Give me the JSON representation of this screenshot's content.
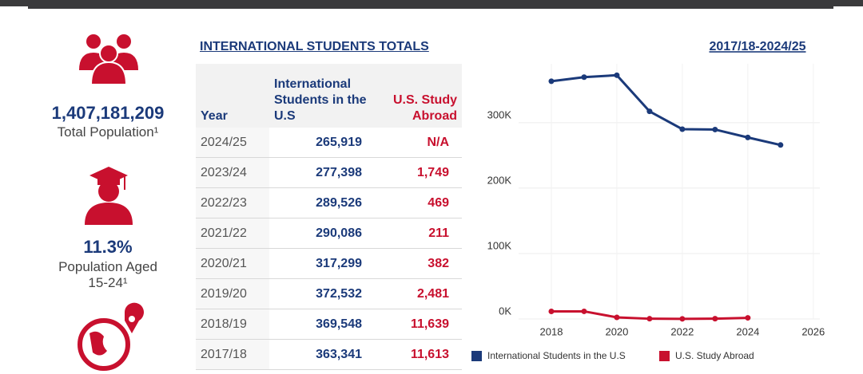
{
  "stats": [
    {
      "value": "1,407,181,209",
      "label": "Total Population¹"
    },
    {
      "value": "11.3%",
      "label": "Population Aged 15-24¹"
    }
  ],
  "table": {
    "title": "INTERNATIONAL STUDENTS TOTALS",
    "header": [
      "Year",
      "International Students in the U.S",
      "U.S. Study Abroad"
    ],
    "rows": [
      [
        "2024/25",
        "265,919",
        "N/A"
      ],
      [
        "2023/24",
        "277,398",
        "1,749"
      ],
      [
        "2022/23",
        "289,526",
        "469"
      ],
      [
        "2021/22",
        "290,086",
        "211"
      ],
      [
        "2020/21",
        "317,299",
        "382"
      ],
      [
        "2019/20",
        "372,532",
        "2,481"
      ],
      [
        "2018/19",
        "369,548",
        "11,639"
      ],
      [
        "2017/18",
        "363,341",
        "11,613"
      ]
    ]
  },
  "chart_data": {
    "type": "line",
    "title": "2017/18-2024/25",
    "x": [
      2018,
      2019,
      2020,
      2021,
      2022,
      2023,
      2024,
      2025
    ],
    "series": [
      {
        "name": "International Students in the U.S",
        "color": "#1b3a7a",
        "values": [
          363341,
          369548,
          372532,
          317299,
          290086,
          289526,
          277398,
          265919
        ]
      },
      {
        "name": "U.S. Study Abroad",
        "color": "#c8102e",
        "values": [
          11613,
          11639,
          2481,
          382,
          211,
          469,
          1749,
          null
        ]
      }
    ],
    "xlim": [
      2017,
      2026.2
    ],
    "xticks": [
      2018,
      2020,
      2022,
      2024,
      2026
    ],
    "ylim": [
      0,
      390000
    ],
    "yticks": [
      {
        "value": 0,
        "label": "0K"
      },
      {
        "value": 100000,
        "label": "100K"
      },
      {
        "value": 200000,
        "label": "200K"
      },
      {
        "value": 300000,
        "label": "300K"
      }
    ],
    "grid": true,
    "legend": "bottom"
  }
}
